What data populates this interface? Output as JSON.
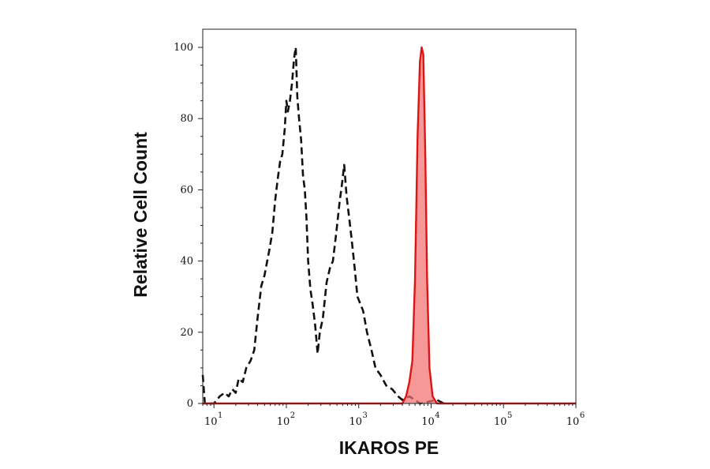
{
  "chart_data": {
    "type": "area",
    "x_scale": "log",
    "xlabel": "IKAROS PE",
    "ylabel": "Relative Cell Count",
    "xlim": [
      7,
      1000000
    ],
    "ylim": [
      0,
      100
    ],
    "xticks": [
      {
        "base": "10",
        "exp": "1",
        "value": 10
      },
      {
        "base": "10",
        "exp": "2",
        "value": 100
      },
      {
        "base": "10",
        "exp": "3",
        "value": 1000
      },
      {
        "base": "10",
        "exp": "4",
        "value": 10000
      },
      {
        "base": "10",
        "exp": "5",
        "value": 100000
      },
      {
        "base": "10",
        "exp": "6",
        "value": 1000000
      }
    ],
    "yticks": [
      "0",
      "20",
      "40",
      "60",
      "80",
      "100"
    ],
    "grid": false,
    "series": [
      {
        "style": "dashed",
        "color": "#111111",
        "fill": "none",
        "points": [
          [
            7,
            8
          ],
          [
            7.5,
            0
          ],
          [
            10,
            0
          ],
          [
            12,
            2
          ],
          [
            14,
            3
          ],
          [
            16,
            2
          ],
          [
            18,
            4
          ],
          [
            20,
            3
          ],
          [
            22,
            7
          ],
          [
            25,
            6
          ],
          [
            28,
            10
          ],
          [
            32,
            12
          ],
          [
            36,
            15
          ],
          [
            40,
            24
          ],
          [
            45,
            33
          ],
          [
            50,
            36
          ],
          [
            58,
            43
          ],
          [
            64,
            48
          ],
          [
            70,
            57
          ],
          [
            76,
            63
          ],
          [
            82,
            68
          ],
          [
            88,
            70
          ],
          [
            95,
            77
          ],
          [
            100,
            85
          ],
          [
            105,
            82
          ],
          [
            112,
            85
          ],
          [
            120,
            90
          ],
          [
            128,
            97
          ],
          [
            135,
            100
          ],
          [
            142,
            86
          ],
          [
            150,
            80
          ],
          [
            160,
            74
          ],
          [
            170,
            64
          ],
          [
            180,
            60
          ],
          [
            190,
            52
          ],
          [
            200,
            40
          ],
          [
            215,
            32
          ],
          [
            230,
            28
          ],
          [
            250,
            22
          ],
          [
            270,
            14
          ],
          [
            290,
            20
          ],
          [
            320,
            24
          ],
          [
            360,
            34
          ],
          [
            400,
            38
          ],
          [
            440,
            40
          ],
          [
            490,
            48
          ],
          [
            540,
            56
          ],
          [
            590,
            62
          ],
          [
            630,
            67
          ],
          [
            680,
            58
          ],
          [
            740,
            52
          ],
          [
            800,
            46
          ],
          [
            880,
            38
          ],
          [
            960,
            30
          ],
          [
            1050,
            28
          ],
          [
            1150,
            26
          ],
          [
            1300,
            20
          ],
          [
            1500,
            15
          ],
          [
            1700,
            10
          ],
          [
            2000,
            8
          ],
          [
            2400,
            5
          ],
          [
            2900,
            4
          ],
          [
            3500,
            2
          ],
          [
            4000,
            1
          ],
          [
            5000,
            2
          ],
          [
            7000,
            0
          ],
          [
            12000,
            1
          ],
          [
            15000,
            0
          ]
        ]
      },
      {
        "style": "solid",
        "color": "#dd1515",
        "fill": "rgba(242,112,112,0.72)",
        "points": [
          [
            7,
            0
          ],
          [
            4000,
            0
          ],
          [
            4500,
            2
          ],
          [
            5000,
            6
          ],
          [
            5500,
            12
          ],
          [
            6000,
            35
          ],
          [
            6500,
            75
          ],
          [
            7000,
            96
          ],
          [
            7400,
            100
          ],
          [
            7800,
            98
          ],
          [
            8300,
            70
          ],
          [
            8800,
            35
          ],
          [
            9500,
            10
          ],
          [
            10500,
            2
          ],
          [
            12000,
            0
          ],
          [
            1000000,
            0
          ]
        ]
      }
    ]
  }
}
